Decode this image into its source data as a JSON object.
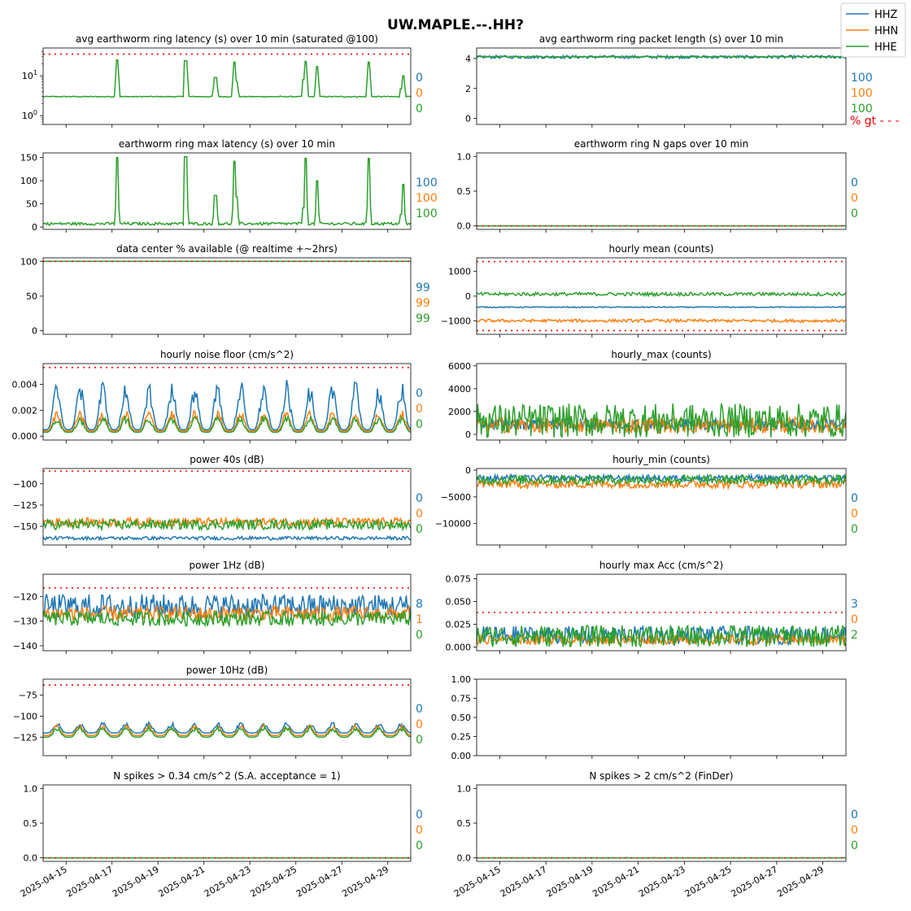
{
  "suptitle": "UW.MAPLE.--.HH?",
  "legend": [
    "HHZ",
    "HHN",
    "HHE"
  ],
  "colors": {
    "HHZ": "#1f77b4",
    "HHN": "#ff7f0e",
    "HHE": "#2ca02c",
    "threshold": "#ff0000"
  },
  "pct_gt_label": "% gt - - -",
  "date_ticks": [
    "2025-04-15",
    "2025-04-17",
    "2025-04-19",
    "2025-04-21",
    "2025-04-23",
    "2025-04-25",
    "2025-04-27",
    "2025-04-29"
  ],
  "chart_data": [
    {
      "id": "p0",
      "type": "line",
      "title": "avg earthworm ring latency (s)   over 10 min (saturated @100)",
      "scale": "log",
      "ylim": [
        0.6,
        50
      ],
      "yticks": [
        1,
        10
      ],
      "ytick_labels": [
        "10^0",
        "10^1"
      ],
      "threshold": 35,
      "series": [
        {
          "name": "HHE",
          "baseline": 3,
          "spikes": [
            [
              3.2,
              25
            ],
            [
              6.2,
              24
            ],
            [
              7.5,
              9
            ],
            [
              8.3,
              22
            ],
            [
              8.4,
              7
            ],
            [
              11.4,
              23
            ],
            [
              11.95,
              17
            ],
            [
              14.2,
              22
            ],
            [
              15.65,
              10
            ]
          ]
        }
      ],
      "pct": [
        "0",
        "0",
        "0"
      ]
    },
    {
      "id": "p1",
      "type": "line",
      "title": "avg earthworm ring packet length (s)   over 10 min",
      "ylim": [
        -0.4,
        4.7
      ],
      "yticks": [
        0,
        2,
        4
      ],
      "ytick_labels": [
        "0",
        "2",
        "4"
      ],
      "threshold": null,
      "series": [
        {
          "name": "HHZ",
          "base": 4.1,
          "noise": 0.1
        },
        {
          "name": "HHE",
          "base": 4.12,
          "noise": 0.03
        }
      ],
      "pct": [
        "100",
        "100",
        "100"
      ]
    },
    {
      "id": "p2",
      "type": "line",
      "title": "earthworm ring max latency (s)   over 10 min",
      "ylim": [
        -5,
        160
      ],
      "yticks": [
        0,
        50,
        100,
        150
      ],
      "ytick_labels": [
        "0",
        "50",
        "100",
        "150"
      ],
      "threshold": null,
      "series": [
        {
          "name": "HHE",
          "baseline": 6,
          "spikes": [
            [
              3.2,
              150
            ],
            [
              6.2,
              152
            ],
            [
              7.5,
              68
            ],
            [
              8.3,
              142
            ],
            [
              8.4,
              65
            ],
            [
              11.4,
              148
            ],
            [
              11.95,
              100
            ],
            [
              14.2,
              148
            ],
            [
              15.65,
              92
            ]
          ]
        }
      ],
      "pct": [
        "100",
        "100",
        "100"
      ]
    },
    {
      "id": "p3",
      "type": "line",
      "title": "earthworm ring N gaps   over 10 min",
      "ylim": [
        -0.05,
        1.05
      ],
      "yticks": [
        0,
        0.5,
        1
      ],
      "ytick_labels": [
        "0.0",
        "0.5",
        "1.0"
      ],
      "threshold": 0,
      "series": [
        {
          "name": "HHE",
          "base": 0,
          "noise": 0
        }
      ],
      "pct": [
        "0",
        "0",
        "0"
      ]
    },
    {
      "id": "p4",
      "type": "line",
      "title": "data center % available (@ realtime +~2hrs)",
      "ylim": [
        -5,
        105
      ],
      "yticks": [
        0,
        50,
        100
      ],
      "ytick_labels": [
        "0",
        "50",
        "100"
      ],
      "threshold": 100,
      "series": [
        {
          "name": "HHE",
          "base": 100,
          "noise": 0
        }
      ],
      "pct": [
        "99",
        "99",
        "99"
      ]
    },
    {
      "id": "p5",
      "type": "line",
      "title": "hourly mean (counts)",
      "ylim": [
        -1550,
        1550
      ],
      "yticks": [
        -1000,
        0,
        1000
      ],
      "ytick_labels": [
        "−1000",
        "0",
        "1000"
      ],
      "threshold": [
        1400,
        -1400
      ],
      "series": [
        {
          "name": "HHZ",
          "base": -450,
          "noise": 20
        },
        {
          "name": "HHN",
          "base": -1000,
          "noise": 60
        },
        {
          "name": "HHE",
          "base": 80,
          "noise": 70
        }
      ],
      "pct": [
        "",
        "",
        ""
      ]
    },
    {
      "id": "p6",
      "type": "line",
      "title": "hourly noise floor (cm/s^2)",
      "ylim": [
        -0.0003,
        0.0056
      ],
      "yticks": [
        0,
        0.002,
        0.004
      ],
      "ytick_labels": [
        "0.000",
        "0.002",
        "0.004"
      ],
      "threshold": 0.0053,
      "series": [
        {
          "name": "HHZ",
          "base": 0.0005,
          "amp": 0.0035
        },
        {
          "name": "HHN",
          "base": 0.0004,
          "amp": 0.0015
        },
        {
          "name": "HHE",
          "base": 0.0003,
          "amp": 0.0012
        }
      ],
      "pct": [
        "0",
        "0",
        "0"
      ]
    },
    {
      "id": "p7",
      "type": "line",
      "title": "hourly_max (counts)",
      "ylim": [
        -500,
        6200
      ],
      "yticks": [
        0,
        2000,
        4000,
        6000
      ],
      "ytick_labels": [
        "0",
        "2000",
        "4000",
        "6000"
      ],
      "threshold": null,
      "series": [
        {
          "name": "HHZ",
          "base": 900,
          "noise": 500
        },
        {
          "name": "HHN",
          "base": 800,
          "noise": 700
        },
        {
          "name": "HHE",
          "base": 1200,
          "noise": 1500
        }
      ],
      "pct": [
        "",
        "",
        ""
      ]
    },
    {
      "id": "p8",
      "type": "line",
      "title": "power 40s (dB)",
      "ylim": [
        -172,
        -82
      ],
      "yticks": [
        -150,
        -125,
        -100
      ],
      "ytick_labels": [
        "−150",
        "−125",
        "−100"
      ],
      "threshold": -85,
      "series": [
        {
          "name": "HHZ",
          "base": -164,
          "noise": 2
        },
        {
          "name": "HHN",
          "base": -145,
          "noise": 5
        },
        {
          "name": "HHE",
          "base": -148,
          "noise": 6
        }
      ],
      "pct": [
        "0",
        "0",
        "0"
      ]
    },
    {
      "id": "p9",
      "type": "line",
      "title": "hourly_min (counts)",
      "ylim": [
        -14000,
        300
      ],
      "yticks": [
        -10000,
        -5000,
        0
      ],
      "ytick_labels": [
        "−10000",
        "−5000",
        "0"
      ],
      "threshold": null,
      "series": [
        {
          "name": "HHZ",
          "base": -1500,
          "noise": 600
        },
        {
          "name": "HHN",
          "base": -2600,
          "noise": 800
        },
        {
          "name": "HHE",
          "base": -1800,
          "noise": 900
        }
      ],
      "pct": [
        "0",
        "0",
        "0"
      ]
    },
    {
      "id": "p10",
      "type": "line",
      "title": "power 1Hz (dB)",
      "ylim": [
        -142,
        -111
      ],
      "yticks": [
        -140,
        -130,
        -120
      ],
      "ytick_labels": [
        "−140",
        "−130",
        "−120"
      ],
      "threshold": -116.5,
      "series": [
        {
          "name": "HHZ",
          "base": -124,
          "noise": 5
        },
        {
          "name": "HHN",
          "base": -127,
          "noise": 3
        },
        {
          "name": "HHE",
          "base": -129,
          "noise": 3
        }
      ],
      "pct": [
        "8",
        "1",
        "0"
      ]
    },
    {
      "id": "p11",
      "type": "line",
      "title": "hourly max Acc (cm/s^2)",
      "ylim": [
        -0.004,
        0.08
      ],
      "yticks": [
        0,
        0.025,
        0.05,
        0.075
      ],
      "ytick_labels": [
        "0.000",
        "0.025",
        "0.050",
        "0.075"
      ],
      "threshold": 0.038,
      "series": [
        {
          "name": "HHZ",
          "base": 0.013,
          "noise": 0.01
        },
        {
          "name": "HHN",
          "base": 0.008,
          "noise": 0.005
        },
        {
          "name": "HHE",
          "base": 0.012,
          "noise": 0.012
        }
      ],
      "pct": [
        "3",
        "0",
        "2"
      ]
    },
    {
      "id": "p12",
      "type": "line",
      "title": "power 10Hz (dB)",
      "ylim": [
        -147,
        -56
      ],
      "yticks": [
        -125,
        -100,
        -75
      ],
      "ytick_labels": [
        "−125",
        "−100",
        "−75"
      ],
      "threshold": -63,
      "series": [
        {
          "name": "HHZ",
          "base": -120,
          "amp": 12
        },
        {
          "name": "HHN",
          "base": -123,
          "amp": 12
        },
        {
          "name": "HHE",
          "base": -125,
          "amp": 12
        }
      ],
      "pct": [
        "0",
        "0",
        "0"
      ]
    },
    {
      "id": "p13",
      "type": "line",
      "title": "",
      "ylim": [
        0,
        1
      ],
      "yticks": [
        0,
        0.25,
        0.5,
        0.75,
        1
      ],
      "ytick_labels": [
        "0.00",
        "0.25",
        "0.50",
        "0.75",
        "1.00"
      ],
      "threshold": null,
      "series": [],
      "pct": [
        "",
        "",
        ""
      ]
    },
    {
      "id": "p14",
      "type": "line",
      "title": "N spikes > 0.34 cm/s^2 (S.A. acceptance = 1)",
      "ylim": [
        -0.05,
        1.05
      ],
      "yticks": [
        0,
        0.5,
        1
      ],
      "ytick_labels": [
        "0.0",
        "0.5",
        "1.0"
      ],
      "threshold": 0,
      "series": [
        {
          "name": "HHE",
          "base": 0,
          "noise": 0
        }
      ],
      "pct": [
        "0",
        "0",
        "0"
      ]
    },
    {
      "id": "p15",
      "type": "line",
      "title": "N spikes > 2 cm/s^2 (FinDer)",
      "ylim": [
        -0.05,
        1.05
      ],
      "yticks": [
        0,
        0.5,
        1
      ],
      "ytick_labels": [
        "0.0",
        "0.5",
        "1.0"
      ],
      "threshold": 0,
      "series": [
        {
          "name": "HHE",
          "base": 0,
          "noise": 0
        }
      ],
      "pct": [
        "0",
        "0",
        "0"
      ]
    }
  ]
}
